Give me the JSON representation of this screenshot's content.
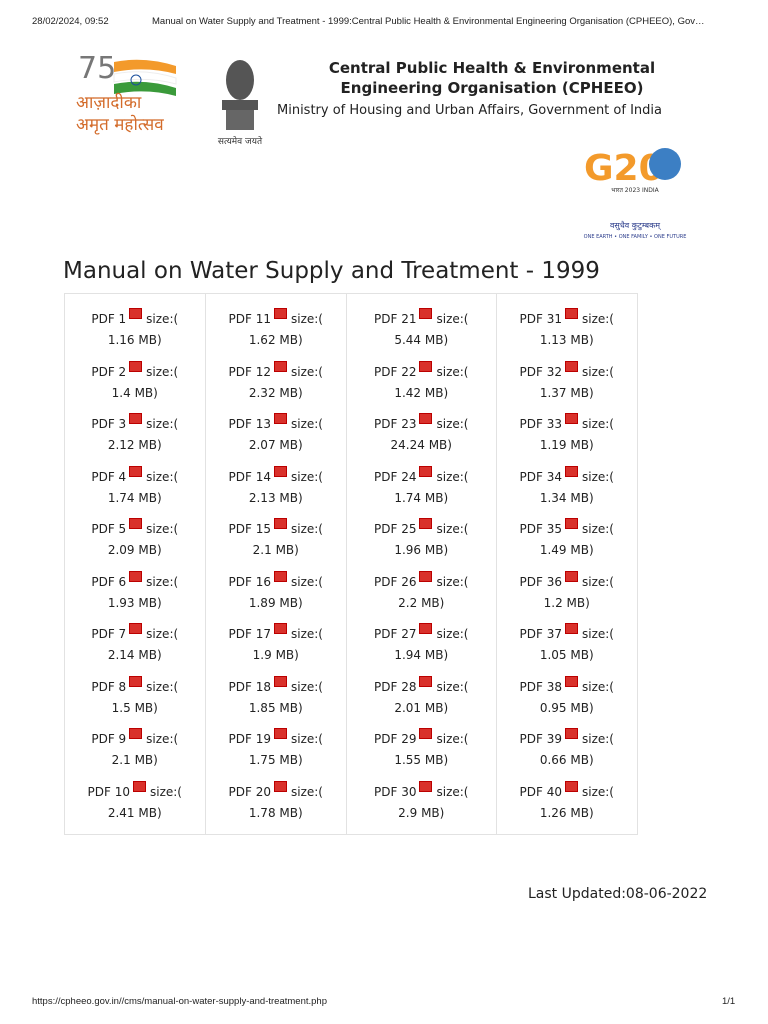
{
  "print_header": {
    "date": "28/02/2024, 09:52",
    "title": "Manual on Water Supply and Treatment - 1999:Central Public Health & Environmental Engineering Organisation (CPHEEO), Gov…"
  },
  "logos": {
    "azadi": {
      "number": "75",
      "line1": "आज़ादीका",
      "line2": "अमृत महोत्सव"
    },
    "emblem": {
      "motto": "सत्यमेव जयते"
    },
    "g20": {
      "mark": "G20",
      "year": "भारत 2023 INDIA",
      "motto": "वसुधैव कुटुम्बकम्",
      "tagline": "ONE EARTH • ONE FAMILY • ONE FUTURE"
    }
  },
  "header": {
    "org": "Central Public Health & Environmental Engineering Organisation (CPHEEO)",
    "ministry": "Ministry of Housing and Urban Affairs, Government of India"
  },
  "page_title": "Manual on Water Supply and Treatment - 1999",
  "table": {
    "size_label": "size:(",
    "columns": [
      [
        {
          "name": "PDF 1",
          "size": "1.16 MB)"
        },
        {
          "name": "PDF 2",
          "size": "1.4 MB)"
        },
        {
          "name": "PDF 3",
          "size": "2.12 MB)"
        },
        {
          "name": "PDF 4",
          "size": "1.74 MB)"
        },
        {
          "name": "PDF 5",
          "size": "2.09 MB)"
        },
        {
          "name": "PDF 6",
          "size": "1.93 MB)"
        },
        {
          "name": "PDF 7",
          "size": "2.14 MB)"
        },
        {
          "name": "PDF 8",
          "size": "1.5 MB)"
        },
        {
          "name": "PDF 9",
          "size": "2.1 MB)"
        },
        {
          "name": "PDF 10",
          "size": "2.41 MB)"
        }
      ],
      [
        {
          "name": "PDF 11",
          "size": "1.62 MB)"
        },
        {
          "name": "PDF 12",
          "size": "2.32 MB)"
        },
        {
          "name": "PDF 13",
          "size": "2.07 MB)"
        },
        {
          "name": "PDF 14",
          "size": "2.13 MB)"
        },
        {
          "name": "PDF 15",
          "size": "2.1 MB)"
        },
        {
          "name": "PDF 16",
          "size": "1.89 MB)"
        },
        {
          "name": "PDF 17",
          "size": "1.9 MB)"
        },
        {
          "name": "PDF 18",
          "size": "1.85 MB)"
        },
        {
          "name": "PDF 19",
          "size": "1.75 MB)"
        },
        {
          "name": "PDF 20",
          "size": "1.78 MB)"
        }
      ],
      [
        {
          "name": "PDF 21",
          "size": "5.44 MB)"
        },
        {
          "name": "PDF 22",
          "size": "1.42 MB)"
        },
        {
          "name": "PDF 23",
          "size": "24.24 MB)"
        },
        {
          "name": "PDF 24",
          "size": "1.74 MB)"
        },
        {
          "name": "PDF 25",
          "size": "1.96 MB)"
        },
        {
          "name": "PDF 26",
          "size": "2.2 MB)"
        },
        {
          "name": "PDF 27",
          "size": "1.94 MB)"
        },
        {
          "name": "PDF 28",
          "size": "2.01 MB)"
        },
        {
          "name": "PDF 29",
          "size": "1.55 MB)"
        },
        {
          "name": "PDF 30",
          "size": "2.9 MB)"
        }
      ],
      [
        {
          "name": "PDF 31",
          "size": "1.13 MB)"
        },
        {
          "name": "PDF 32",
          "size": "1.37 MB)"
        },
        {
          "name": "PDF 33",
          "size": "1.19 MB)"
        },
        {
          "name": "PDF 34",
          "size": "1.34 MB)"
        },
        {
          "name": "PDF 35",
          "size": "1.49 MB)"
        },
        {
          "name": "PDF 36",
          "size": "1.2 MB)"
        },
        {
          "name": "PDF 37",
          "size": "1.05 MB)"
        },
        {
          "name": "PDF 38",
          "size": "0.95 MB)"
        },
        {
          "name": "PDF 39",
          "size": "0.66 MB)"
        },
        {
          "name": "PDF 40",
          "size": "1.26 MB)"
        }
      ]
    ]
  },
  "last_updated": "Last Updated:08-06-2022",
  "print_footer": {
    "url": "https://cpheeo.gov.in//cms/manual-on-water-supply-and-treatment.php",
    "page": "1/1"
  }
}
